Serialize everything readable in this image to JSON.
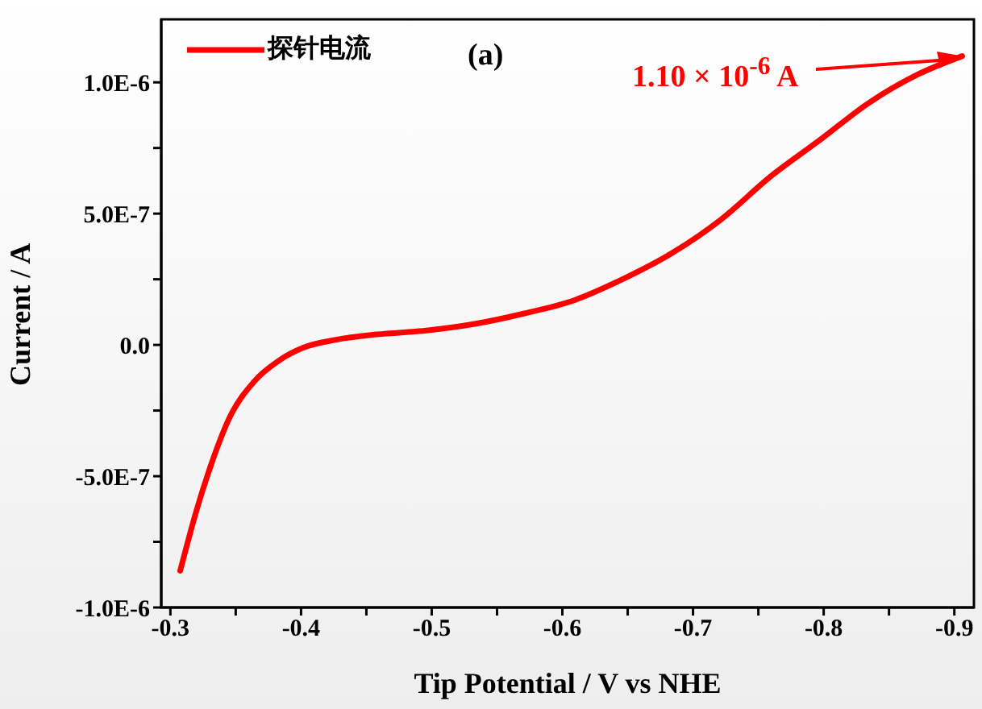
{
  "chart_data": {
    "type": "line",
    "xlabel": "Tip Potential / V vs NHE",
    "ylabel": "Current / A",
    "annotations": [
      "(a)",
      "1.10 × 10$^{-6}$ A"
    ],
    "x": [
      -0.3075,
      -0.32,
      -0.333,
      -0.345,
      -0.364,
      -0.383,
      -0.402,
      -0.427,
      -0.458,
      -0.496,
      -0.533,
      -0.571,
      -0.609,
      -0.646,
      -0.684,
      -0.722,
      -0.759,
      -0.797,
      -0.834,
      -0.872,
      -0.906
    ],
    "series": [
      {
        "name": "探针电流",
        "color": "#ff0000",
        "values": [
          -8.6e-07,
          -6.3e-07,
          -4.3e-07,
          -2.8e-07,
          -1.4e-07,
          -6e-08,
          -1e-08,
          2e-08,
          4e-08,
          5.5e-08,
          8e-08,
          1.2e-07,
          1.7e-07,
          2.5e-07,
          3.5e-07,
          4.8e-07,
          6.4e-07,
          7.8e-07,
          9.2e-07,
          1.03e-06,
          1.1e-06
        ]
      }
    ],
    "xlim": [
      -0.293,
      -0.915
    ],
    "xticks": [
      -0.3,
      {
        "value": -0.35,
        "label": null
      },
      -0.4,
      {
        "value": -0.45,
        "label": null
      },
      -0.5,
      {
        "value": -0.55,
        "label": null
      },
      -0.6,
      {
        "value": -0.65,
        "label": null
      },
      -0.7,
      {
        "value": -0.75,
        "label": null
      },
      -0.8,
      {
        "value": -0.85,
        "label": null
      },
      -0.9
    ],
    "ylim": [
      -1e-06,
      1.24e-06
    ],
    "yticks": [
      {
        "value": -1e-06,
        "label": "-1.0E-6"
      },
      {
        "value": -7.5e-07,
        "label": null
      },
      {
        "value": -5e-07,
        "label": "-5.0E-7"
      },
      {
        "value": -2.5e-07,
        "label": null
      },
      {
        "value": 0,
        "label": "0.0"
      },
      {
        "value": 2.5e-07,
        "label": null
      },
      {
        "value": 5e-07,
        "label": "5.0E-7"
      },
      {
        "value": 7.5e-07,
        "label": null
      },
      {
        "value": 1e-06,
        "label": "1.0E-6"
      }
    ],
    "legend": "top left",
    "grid": false,
    "marker": "none",
    "line_style": "solid"
  }
}
